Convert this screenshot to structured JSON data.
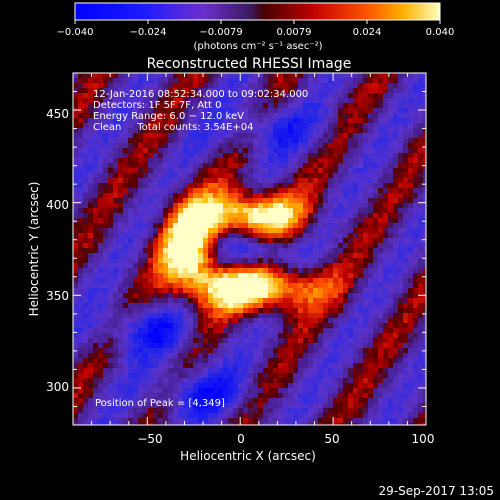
{
  "colorbar": {
    "tick_labels": [
      "−0.040",
      "−0.024",
      "−0.0079",
      "0.0079",
      "0.024",
      "0.040"
    ],
    "unit_label": "(photons cm⁻² s⁻¹ asec⁻²)",
    "range": [
      -0.04,
      0.04
    ]
  },
  "plot": {
    "title": "Reconstructed RHESSI Image",
    "xlabel": "Heliocentric X (arcsec)",
    "ylabel": "Heliocentric Y (arcsec)",
    "x_ticks": [
      "−50",
      "0",
      "50",
      "100"
    ],
    "y_ticks": [
      "450",
      "400",
      "350",
      "300"
    ],
    "xlim": [
      -90,
      100
    ],
    "ylim": [
      280,
      470
    ]
  },
  "info": {
    "line1": "12-Jan-2016 08:52:34.000 to 09:02:34.000",
    "line2": "Detectors: 1F 5F 7F, Att 0",
    "line3": "Energy Range: 6.0 − 12.0 keV",
    "line4": "Clean     Total counts: 3.54E+04",
    "peak": "Position of Peak = [4,349]"
  },
  "footer": {
    "timestamp": "29-Sep-2017 13:05"
  }
}
